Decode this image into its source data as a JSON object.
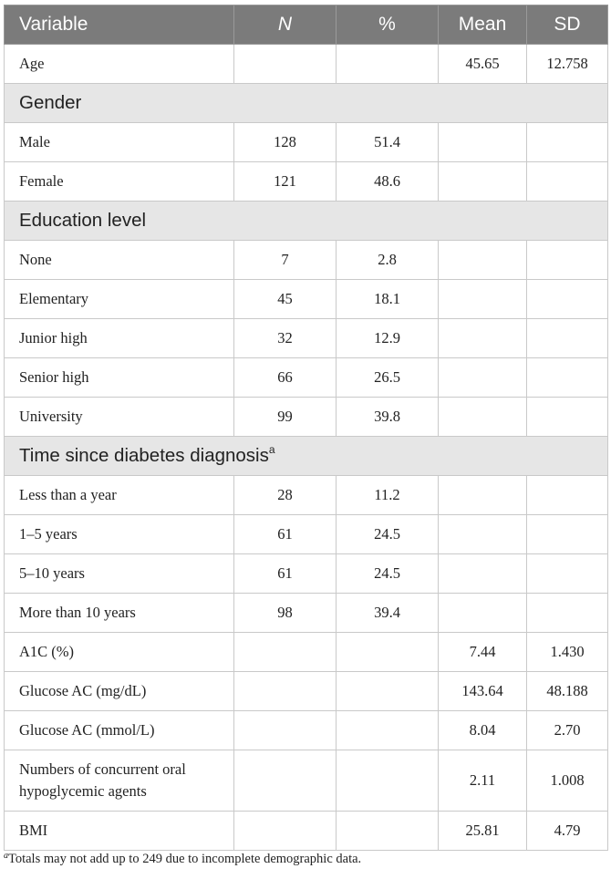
{
  "header": {
    "variable": "Variable",
    "n": "N",
    "pct": "%",
    "mean": "Mean",
    "sd": "SD"
  },
  "rows": {
    "age": {
      "label": "Age",
      "n": "",
      "pct": "",
      "mean": "45.65",
      "sd": "12.758"
    },
    "gender_section": "Gender",
    "male": {
      "label": "Male",
      "n": "128",
      "pct": "51.4",
      "mean": "",
      "sd": ""
    },
    "female": {
      "label": "Female",
      "n": "121",
      "pct": "48.6",
      "mean": "",
      "sd": ""
    },
    "education_section": "Education level",
    "none": {
      "label": "None",
      "n": "7",
      "pct": "2.8",
      "mean": "",
      "sd": ""
    },
    "elementary": {
      "label": "Elementary",
      "n": "45",
      "pct": "18.1",
      "mean": "",
      "sd": ""
    },
    "junior": {
      "label": "Junior high",
      "n": "32",
      "pct": "12.9",
      "mean": "",
      "sd": ""
    },
    "senior": {
      "label": "Senior high",
      "n": "66",
      "pct": "26.5",
      "mean": "",
      "sd": ""
    },
    "university": {
      "label": "University",
      "n": "99",
      "pct": "39.8",
      "mean": "",
      "sd": ""
    },
    "time_section": "Time since diabetes diagnosis",
    "time_section_sup": "a",
    "lt1": {
      "label": "Less than a year",
      "n": "28",
      "pct": "11.2",
      "mean": "",
      "sd": ""
    },
    "y1_5": {
      "label": "1–5 years",
      "n": "61",
      "pct": "24.5",
      "mean": "",
      "sd": ""
    },
    "y5_10": {
      "label": "5–10 years",
      "n": "61",
      "pct": "24.5",
      "mean": "",
      "sd": ""
    },
    "gt10": {
      "label": "More than 10 years",
      "n": "98",
      "pct": "39.4",
      "mean": "",
      "sd": ""
    },
    "a1c": {
      "label": "A1C (%)",
      "n": "",
      "pct": "",
      "mean": "7.44",
      "sd": "1.430"
    },
    "glucose_mg": {
      "label": "Glucose AC (mg/dL)",
      "n": "",
      "pct": "",
      "mean": "143.64",
      "sd": "48.188"
    },
    "glucose_mmol": {
      "label": "Glucose AC (mmol/L)",
      "n": "",
      "pct": "",
      "mean": "8.04",
      "sd": "2.70"
    },
    "agents": {
      "label": "Numbers of concurrent oral hypoglycemic agents",
      "n": "",
      "pct": "",
      "mean": "2.11",
      "sd": "1.008"
    },
    "bmi": {
      "label": "BMI",
      "n": "",
      "pct": "",
      "mean": "25.81",
      "sd": "4.79"
    }
  },
  "footnote": {
    "marker": "a",
    "text": "Totals may not add up to 249 due to incomplete demographic data."
  }
}
